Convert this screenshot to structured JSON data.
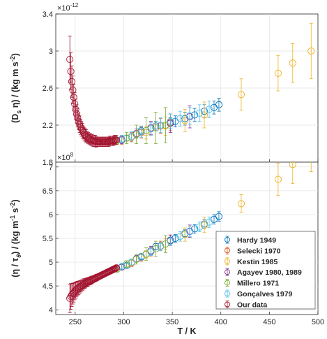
{
  "chart_data": [
    {
      "type": "scatter",
      "panel": "top",
      "ylabel_parts": [
        "(D",
        "s",
        " η) / (kg m s",
        "-2",
        ")"
      ],
      "ylim": [
        1.8,
        3.4
      ],
      "yticks": [
        "1.8",
        "2.2",
        "2.6",
        "3",
        "3.4"
      ],
      "yticks_values": [
        1.8,
        2.2,
        2.6,
        3.0,
        3.4
      ],
      "exponent_label": [
        "×10",
        "-12"
      ],
      "xlim": [
        230,
        500
      ],
      "grid": true,
      "series": [
        {
          "name": "Hardy 1949",
          "color": "#0072BD",
          "points": [
            [
              303,
              2.06
            ],
            [
              318,
              2.14
            ],
            [
              333,
              2.19
            ],
            [
              348,
              2.22
            ],
            [
              353,
              2.24
            ],
            [
              363,
              2.27
            ],
            [
              373,
              2.31
            ],
            [
              383,
              2.35
            ],
            [
              393,
              2.39
            ],
            [
              398,
              2.42
            ]
          ],
          "err": [
            0.03,
            0.04,
            0.05,
            0.06,
            0.06,
            0.07,
            0.07,
            0.07,
            0.07,
            0.07
          ]
        },
        {
          "name": "Selecki 1970",
          "color": "#D95319",
          "points": [
            [
              298,
              2.04
            ],
            [
              308,
              2.07
            ],
            [
              318,
              2.12
            ],
            [
              328,
              2.16
            ],
            [
              338,
              2.19
            ],
            [
              348,
              2.23
            ]
          ],
          "err": [
            0.05,
            0.05,
            0.06,
            0.07,
            0.08,
            0.09
          ]
        },
        {
          "name": "Kestin 1985",
          "color": "#EDB120",
          "points": [
            [
              308,
              2.07
            ],
            [
              323,
              2.12
            ],
            [
              343,
              2.19
            ],
            [
              363,
              2.25
            ],
            [
              383,
              2.31
            ],
            [
              421,
              2.53
            ],
            [
              459,
              2.76
            ],
            [
              474,
              2.87
            ],
            [
              493,
              3.0
            ]
          ],
          "err": [
            0.04,
            0.07,
            0.1,
            0.12,
            0.14,
            0.17,
            0.19,
            0.21,
            0.3
          ]
        },
        {
          "name": "Agayev 1980, 1989",
          "color": "#7E2F8E",
          "points": [
            [
              298,
              2.04
            ],
            [
              313,
              2.11
            ],
            [
              328,
              2.17
            ],
            [
              348,
              2.22
            ],
            [
              368,
              2.29
            ]
          ],
          "err": [
            0.04,
            0.05,
            0.07,
            0.1,
            0.12
          ]
        },
        {
          "name": "Millero 1971",
          "color": "#77AC30",
          "points": [
            [
              293,
              2.03
            ],
            [
              303,
              2.06
            ],
            [
              313,
              2.1
            ],
            [
              323,
              2.14
            ],
            [
              333,
              2.17
            ],
            [
              343,
              2.2
            ]
          ],
          "err": [
            0.04,
            0.06,
            0.1,
            0.14,
            0.17,
            0.19
          ]
        },
        {
          "name": "Gonçalves 1979",
          "color": "#4DBEEE",
          "points": [
            [
              298,
              2.05
            ],
            [
              308,
              2.08
            ],
            [
              318,
              2.13
            ],
            [
              328,
              2.16
            ],
            [
              338,
              2.2
            ],
            [
              348,
              2.24
            ],
            [
              358,
              2.27
            ],
            [
              368,
              2.3
            ],
            [
              378,
              2.33
            ],
            [
              388,
              2.37
            ]
          ],
          "err": [
            0.04,
            0.05,
            0.06,
            0.07,
            0.08,
            0.08,
            0.08,
            0.09,
            0.09,
            0.09
          ]
        },
        {
          "name": "Our data",
          "color": "#A2142F",
          "points": [
            [
              244.5,
              2.91
            ],
            [
              245.5,
              2.78
            ],
            [
              246.5,
              2.67
            ],
            [
              247.5,
              2.58
            ],
            [
              248.5,
              2.5
            ],
            [
              249.5,
              2.43
            ],
            [
              250.5,
              2.37
            ],
            [
              251.5,
              2.32
            ],
            [
              252.5,
              2.28
            ],
            [
              253.5,
              2.24
            ],
            [
              254.5,
              2.21
            ],
            [
              255.5,
              2.18
            ],
            [
              256.5,
              2.16
            ],
            [
              257.5,
              2.14
            ],
            [
              258.5,
              2.12
            ],
            [
              259.5,
              2.1
            ],
            [
              260.5,
              2.09
            ],
            [
              261.5,
              2.08
            ],
            [
              262.5,
              2.07
            ],
            [
              263.5,
              2.06
            ],
            [
              264.5,
              2.05
            ],
            [
              265.5,
              2.05
            ],
            [
              266.5,
              2.04
            ],
            [
              267.5,
              2.04
            ],
            [
              268.5,
              2.03
            ],
            [
              269.5,
              2.03
            ],
            [
              270.5,
              2.03
            ],
            [
              271.5,
              2.02
            ],
            [
              272.5,
              2.02
            ],
            [
              273.5,
              2.02
            ],
            [
              274.5,
              2.02
            ],
            [
              275.5,
              2.02
            ],
            [
              276.5,
              2.02
            ],
            [
              277.5,
              2.02
            ],
            [
              278.5,
              2.02
            ],
            [
              279.5,
              2.02
            ],
            [
              280.5,
              2.02
            ],
            [
              281.5,
              2.02
            ],
            [
              282.5,
              2.02
            ],
            [
              283.5,
              2.02
            ],
            [
              284.5,
              2.02
            ],
            [
              285.5,
              2.03
            ],
            [
              286.5,
              2.03
            ],
            [
              287.5,
              2.03
            ],
            [
              288.5,
              2.03
            ],
            [
              289.5,
              2.03
            ],
            [
              290.5,
              2.04
            ],
            [
              291.5,
              2.04
            ],
            [
              292.5,
              2.04
            ]
          ],
          "err": [
            0.25,
            0.2,
            0.17,
            0.15,
            0.14,
            0.12,
            0.11,
            0.1,
            0.1,
            0.09,
            0.09,
            0.08,
            0.08,
            0.08,
            0.07,
            0.07,
            0.07,
            0.07,
            0.06,
            0.06,
            0.06,
            0.06,
            0.06,
            0.06,
            0.06,
            0.06,
            0.06,
            0.06,
            0.05,
            0.05,
            0.05,
            0.05,
            0.05,
            0.05,
            0.05,
            0.05,
            0.05,
            0.05,
            0.05,
            0.05,
            0.05,
            0.05,
            0.05,
            0.05,
            0.05,
            0.05,
            0.05,
            0.05,
            0.05
          ]
        }
      ]
    },
    {
      "type": "scatter",
      "panel": "bottom",
      "ylabel_parts": [
        "(η / τ",
        "θ",
        ") / (kg m",
        "-1",
        " s",
        "-2",
        ")"
      ],
      "ylim": [
        3.9,
        7.1
      ],
      "yticks": [
        "4",
        "4.5",
        "5",
        "5.5",
        "6",
        "6.5",
        "7"
      ],
      "yticks_values": [
        4,
        4.5,
        5,
        5.5,
        6,
        6.5,
        7
      ],
      "exponent_label": [
        "×10",
        "8"
      ],
      "xlim": [
        230,
        500
      ],
      "xticks": [
        "250",
        "300",
        "350",
        "400",
        "450",
        "500"
      ],
      "xticks_values": [
        250,
        300,
        350,
        400,
        450,
        500
      ],
      "xlabel": "T / K",
      "grid": true,
      "legend_position": "lower-right",
      "series": [
        {
          "name": "Hardy 1949",
          "color": "#0072BD",
          "points": [
            [
              303,
              4.93
            ],
            [
              318,
              5.12
            ],
            [
              333,
              5.33
            ],
            [
              348,
              5.45
            ],
            [
              353,
              5.5
            ],
            [
              363,
              5.6
            ],
            [
              373,
              5.7
            ],
            [
              383,
              5.8
            ],
            [
              393,
              5.9
            ],
            [
              398,
              5.96
            ]
          ],
          "err": [
            0.04,
            0.05,
            0.06,
            0.07,
            0.08,
            0.08,
            0.09,
            0.09,
            0.1,
            0.1
          ]
        },
        {
          "name": "Selecki 1970",
          "color": "#D95319",
          "points": [
            [
              298,
              4.9
            ],
            [
              308,
              4.98
            ],
            [
              318,
              5.1
            ],
            [
              328,
              5.22
            ],
            [
              338,
              5.34
            ],
            [
              348,
              5.46
            ]
          ],
          "err": [
            0.06,
            0.07,
            0.08,
            0.09,
            0.1,
            0.11
          ]
        },
        {
          "name": "Kestin 1985",
          "color": "#EDB120",
          "points": [
            [
              308,
              4.99
            ],
            [
              323,
              5.16
            ],
            [
              343,
              5.38
            ],
            [
              363,
              5.58
            ],
            [
              383,
              5.78
            ],
            [
              421,
              6.23
            ],
            [
              459,
              6.74
            ],
            [
              474,
              7.05
            ],
            [
              493,
              7.35
            ]
          ],
          "err": [
            0.05,
            0.08,
            0.11,
            0.14,
            0.16,
            0.19,
            0.34,
            0.4,
            0.45
          ]
        },
        {
          "name": "Agayev 1980, 1989",
          "color": "#7E2F8E",
          "points": [
            [
              298,
              4.9
            ],
            [
              313,
              5.07
            ],
            [
              328,
              5.24
            ],
            [
              348,
              5.46
            ],
            [
              368,
              5.65
            ]
          ],
          "err": [
            0.05,
            0.07,
            0.09,
            0.11,
            0.13
          ]
        },
        {
          "name": "Millero 1971",
          "color": "#77AC30",
          "points": [
            [
              293,
              4.85
            ],
            [
              303,
              4.96
            ],
            [
              313,
              5.06
            ],
            [
              323,
              5.17
            ],
            [
              333,
              5.28
            ],
            [
              343,
              5.38
            ]
          ],
          "err": [
            0.05,
            0.07,
            0.1,
            0.13,
            0.16,
            0.18
          ]
        },
        {
          "name": "Gonçalves 1979",
          "color": "#4DBEEE",
          "points": [
            [
              298,
              4.91
            ],
            [
              308,
              5.0
            ],
            [
              318,
              5.11
            ],
            [
              328,
              5.22
            ],
            [
              338,
              5.33
            ],
            [
              348,
              5.44
            ],
            [
              358,
              5.54
            ],
            [
              368,
              5.64
            ],
            [
              378,
              5.74
            ],
            [
              388,
              5.84
            ]
          ],
          "err": [
            0.05,
            0.06,
            0.07,
            0.08,
            0.09,
            0.09,
            0.1,
            0.1,
            0.1,
            0.11
          ]
        },
        {
          "name": "Our data",
          "color": "#A2142F",
          "points": [
            [
              244.5,
              4.24
            ],
            [
              245.5,
              4.28
            ],
            [
              246.5,
              4.31
            ],
            [
              247.5,
              4.34
            ],
            [
              248.5,
              4.36
            ],
            [
              249.5,
              4.39
            ],
            [
              250.5,
              4.41
            ],
            [
              251.5,
              4.43
            ],
            [
              252.5,
              4.45
            ],
            [
              253.5,
              4.46
            ],
            [
              254.5,
              4.48
            ],
            [
              255.5,
              4.49
            ],
            [
              256.5,
              4.51
            ],
            [
              257.5,
              4.52
            ],
            [
              258.5,
              4.54
            ],
            [
              259.5,
              4.55
            ],
            [
              260.5,
              4.56
            ],
            [
              261.5,
              4.57
            ],
            [
              262.5,
              4.58
            ],
            [
              263.5,
              4.59
            ],
            [
              264.5,
              4.6
            ],
            [
              265.5,
              4.61
            ],
            [
              266.5,
              4.62
            ],
            [
              267.5,
              4.63
            ],
            [
              268.5,
              4.64
            ],
            [
              269.5,
              4.65
            ],
            [
              270.5,
              4.66
            ],
            [
              271.5,
              4.67
            ],
            [
              272.5,
              4.68
            ],
            [
              273.5,
              4.69
            ],
            [
              274.5,
              4.7
            ],
            [
              275.5,
              4.71
            ],
            [
              276.5,
              4.72
            ],
            [
              277.5,
              4.73
            ],
            [
              278.5,
              4.74
            ],
            [
              279.5,
              4.75
            ],
            [
              280.5,
              4.76
            ],
            [
              281.5,
              4.77
            ],
            [
              282.5,
              4.78
            ],
            [
              283.5,
              4.79
            ],
            [
              284.5,
              4.8
            ],
            [
              285.5,
              4.81
            ],
            [
              286.5,
              4.82
            ],
            [
              287.5,
              4.83
            ],
            [
              288.5,
              4.84
            ],
            [
              289.5,
              4.85
            ],
            [
              290.5,
              4.86
            ],
            [
              291.5,
              4.87
            ],
            [
              292.5,
              4.88
            ]
          ],
          "err": [
            0.3,
            0.27,
            0.24,
            0.22,
            0.2,
            0.18,
            0.17,
            0.16,
            0.15,
            0.14,
            0.13,
            0.12,
            0.12,
            0.11,
            0.11,
            0.1,
            0.1,
            0.09,
            0.09,
            0.09,
            0.08,
            0.08,
            0.08,
            0.08,
            0.07,
            0.07,
            0.07,
            0.07,
            0.07,
            0.06,
            0.06,
            0.06,
            0.06,
            0.06,
            0.06,
            0.06,
            0.05,
            0.05,
            0.05,
            0.05,
            0.05,
            0.05,
            0.05,
            0.05,
            0.05,
            0.05,
            0.05,
            0.05,
            0.05
          ]
        }
      ]
    }
  ]
}
